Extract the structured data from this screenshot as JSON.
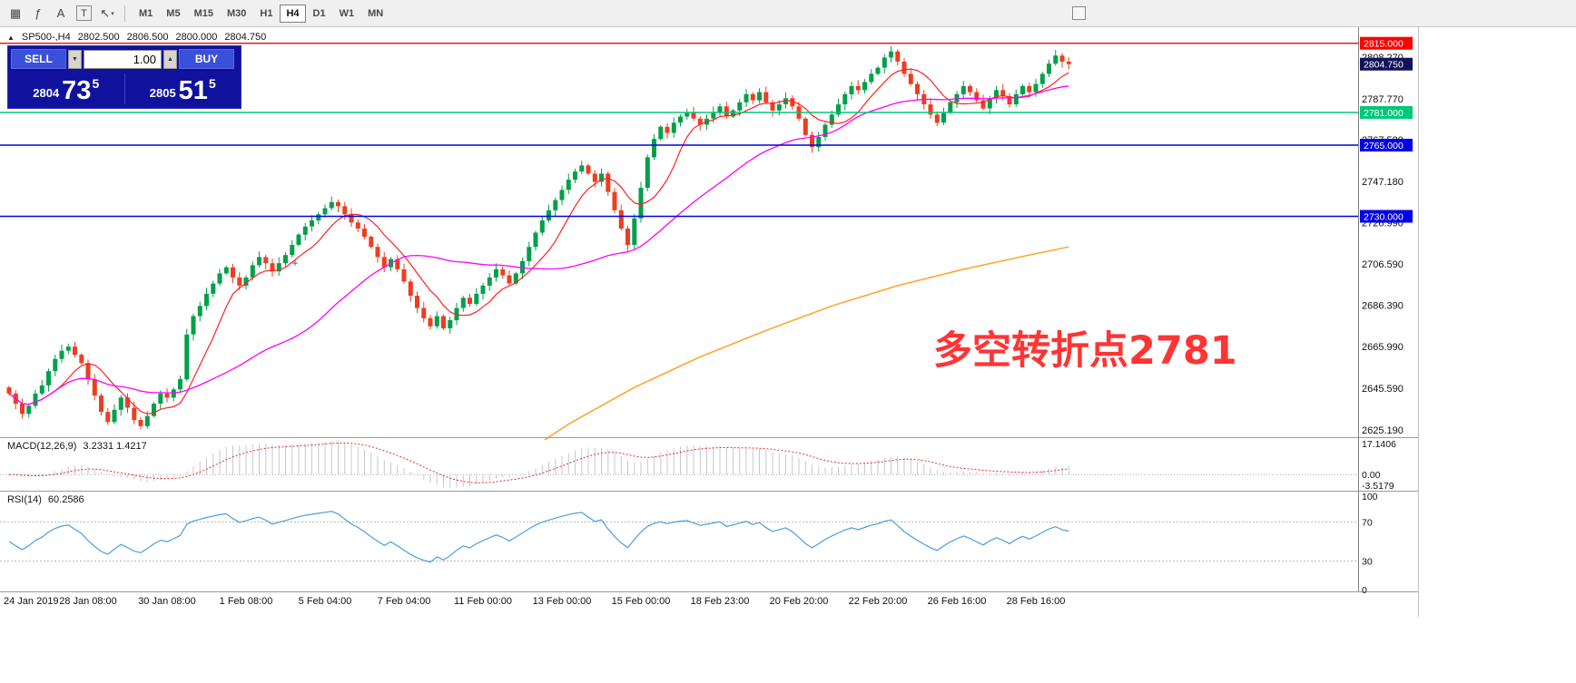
{
  "toolbar": {
    "tools": [
      {
        "name": "chart-icon"
      },
      {
        "name": "indicators-icon"
      },
      {
        "name": "text-label-icon",
        "label": "A"
      },
      {
        "name": "text-tool-icon",
        "label": "T"
      },
      {
        "name": "cursor-tool-icon"
      }
    ],
    "timeframes": [
      {
        "label": "M1"
      },
      {
        "label": "M5"
      },
      {
        "label": "M15"
      },
      {
        "label": "M30"
      },
      {
        "label": "H1"
      },
      {
        "label": "H4",
        "active": true
      },
      {
        "label": "D1"
      },
      {
        "label": "W1"
      },
      {
        "label": "MN"
      }
    ]
  },
  "chart": {
    "header": {
      "symbol": "SP500-,H4",
      "open": "2802.500",
      "high": "2806.500",
      "low": "2800.000",
      "close": "2804.750"
    },
    "one_click": {
      "sell_label": "SELL",
      "buy_label": "BUY",
      "volume": "1.00",
      "bid": {
        "small": "2804",
        "big": "73",
        "sup": "5"
      },
      "ask": {
        "small": "2805",
        "big": "51",
        "sup": "5"
      }
    }
  },
  "chart_data": {
    "type": "candlestick",
    "symbol": "SP500-",
    "timeframe": "H4",
    "title": "SP500-,H4 2802.500 2806.500 2800.000 2804.750",
    "price_range": [
      2622,
      2822
    ],
    "first_open": 2646,
    "closes": [
      2643,
      2638,
      2633,
      2637,
      2643,
      2647,
      2654,
      2660,
      2664,
      2666,
      2662,
      2658,
      2650,
      2642,
      2634,
      2629,
      2635,
      2641,
      2636,
      2630,
      2627,
      2632,
      2638,
      2643,
      2641,
      2645,
      2650,
      2672,
      2681,
      2686,
      2692,
      2697,
      2702,
      2705,
      2700,
      2696,
      2700,
      2706,
      2710,
      2707,
      2703,
      2707,
      2711,
      2716,
      2721,
      2725,
      2728,
      2731,
      2734,
      2737,
      2735,
      2731,
      2727,
      2724,
      2720,
      2715,
      2710,
      2705,
      2709,
      2704,
      2698,
      2691,
      2685,
      2680,
      2676,
      2681,
      2675,
      2679,
      2685,
      2690,
      2687,
      2692,
      2696,
      2700,
      2704,
      2701,
      2697,
      2702,
      2708,
      2715,
      2722,
      2728,
      2733,
      2738,
      2743,
      2748,
      2752,
      2755,
      2751,
      2747,
      2751,
      2742,
      2733,
      2724,
      2716,
      2729,
      2744,
      2759,
      2768,
      2774,
      2771,
      2776,
      2779,
      2781,
      2778,
      2775,
      2778,
      2781,
      2784,
      2779,
      2782,
      2786,
      2790,
      2787,
      2791,
      2786,
      2782,
      2785,
      2788,
      2784,
      2778,
      2770,
      2764,
      2769,
      2775,
      2780,
      2785,
      2790,
      2794,
      2792,
      2796,
      2800,
      2803,
      2808,
      2811,
      2806,
      2800,
      2795,
      2790,
      2785,
      2780,
      2776,
      2781,
      2786,
      2790,
      2794,
      2791,
      2787,
      2783,
      2788,
      2792,
      2789,
      2785,
      2790,
      2794,
      2791,
      2795,
      2800,
      2805,
      2809,
      2806,
      2804.75
    ],
    "candle_colors": {
      "up": "#00a04a",
      "down": "#ee3d20"
    },
    "y_ticks": [
      "2808.270",
      "2787.770",
      "2767.580",
      "2747.180",
      "2726.990",
      "2706.590",
      "2686.390",
      "2665.990",
      "2645.590",
      "2625.190"
    ],
    "x_labels": [
      "24 Jan 2019",
      "28 Jan 08:00",
      "30 Jan 08:00",
      "1 Feb 08:00",
      "5 Feb 04:00",
      "7 Feb 04:00",
      "11 Feb 00:00",
      "13 Feb 00:00",
      "15 Feb 00:00",
      "18 Feb 23:00",
      "20 Feb 20:00",
      "22 Feb 20:00",
      "26 Feb 16:00",
      "28 Feb 16:00"
    ],
    "levels": [
      {
        "price": 2815,
        "label": "2815.000",
        "color": "#ff0000"
      },
      {
        "price": 2781,
        "label": "2781.000",
        "color": "#00c878"
      },
      {
        "price": 2765,
        "label": "2765.000",
        "color": "#0000e8"
      },
      {
        "price": 2730,
        "label": "2730.000",
        "color": "#0000e8"
      }
    ],
    "current_price": {
      "value": 2804.75,
      "label": "2804.750",
      "bg": "#12125c"
    },
    "ma_lines": [
      {
        "name": "ma-fast",
        "color": "#ff2222",
        "period": 8,
        "width": 1.2
      },
      {
        "name": "ma-mid",
        "color": "#ff00ff",
        "period": 34,
        "width": 1.3
      },
      {
        "name": "ma-slow",
        "color": "#ffa226",
        "width": 1.5,
        "anchors": [
          [
            79,
            2615
          ],
          [
            85,
            2628
          ],
          [
            95,
            2646
          ],
          [
            105,
            2661
          ],
          [
            115,
            2674
          ],
          [
            125,
            2686
          ],
          [
            135,
            2696
          ],
          [
            145,
            2704
          ],
          [
            155,
            2711
          ],
          [
            161,
            2715
          ]
        ]
      }
    ],
    "indicators": {
      "macd": {
        "label": "MACD(12,26,9)",
        "values": "3.2331 1.4217",
        "params": [
          12,
          26,
          9
        ],
        "scale_labels": [
          "17.1406",
          "0.00",
          "-3.5179"
        ],
        "histogram_color": "#c8c8c8",
        "signal_color": "#e03030"
      },
      "rsi": {
        "label": "RSI(14)",
        "value": "60.2586",
        "period": 14,
        "levels": [
          70,
          30
        ],
        "scale_labels": [
          "100",
          "70",
          "30",
          "0"
        ],
        "line_color": "#4a9ede"
      }
    },
    "annotation": {
      "text": "多空转折点2781",
      "color": "#ff3434"
    }
  }
}
